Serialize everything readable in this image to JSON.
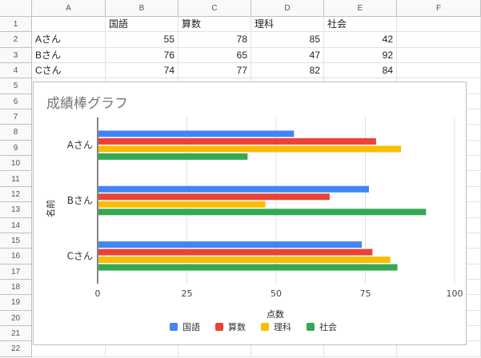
{
  "columns": [
    "A",
    "B",
    "C",
    "D",
    "E",
    "F"
  ],
  "rows": [
    "1",
    "2",
    "3",
    "4",
    "5",
    "6",
    "7",
    "8",
    "9",
    "10",
    "11",
    "12",
    "13",
    "14",
    "15",
    "16",
    "17",
    "18",
    "19",
    "20",
    "21",
    "22"
  ],
  "table": {
    "header": [
      "",
      "国語",
      "算数",
      "理科",
      "社会"
    ],
    "data": [
      [
        "Aさん",
        "55",
        "78",
        "85",
        "42"
      ],
      [
        "Bさん",
        "76",
        "65",
        "47",
        "92"
      ],
      [
        "Cさん",
        "74",
        "77",
        "82",
        "84"
      ]
    ]
  },
  "chart_data": {
    "type": "bar",
    "orientation": "horizontal",
    "title": "成績棒グラフ",
    "xlabel": "点数",
    "ylabel": "名前",
    "categories": [
      "Aさん",
      "Bさん",
      "Cさん"
    ],
    "series": [
      {
        "name": "国語",
        "color": "#4285f4",
        "values": [
          55,
          76,
          74
        ]
      },
      {
        "name": "算数",
        "color": "#ea4335",
        "values": [
          78,
          65,
          77
        ]
      },
      {
        "name": "理科",
        "color": "#fbbc04",
        "values": [
          85,
          47,
          82
        ]
      },
      {
        "name": "社会",
        "color": "#34a853",
        "values": [
          42,
          92,
          84
        ]
      }
    ],
    "xlim": [
      0,
      100
    ],
    "xticks": [
      "0",
      "25",
      "50",
      "75",
      "100"
    ],
    "grid": true,
    "legend": "bottom"
  }
}
